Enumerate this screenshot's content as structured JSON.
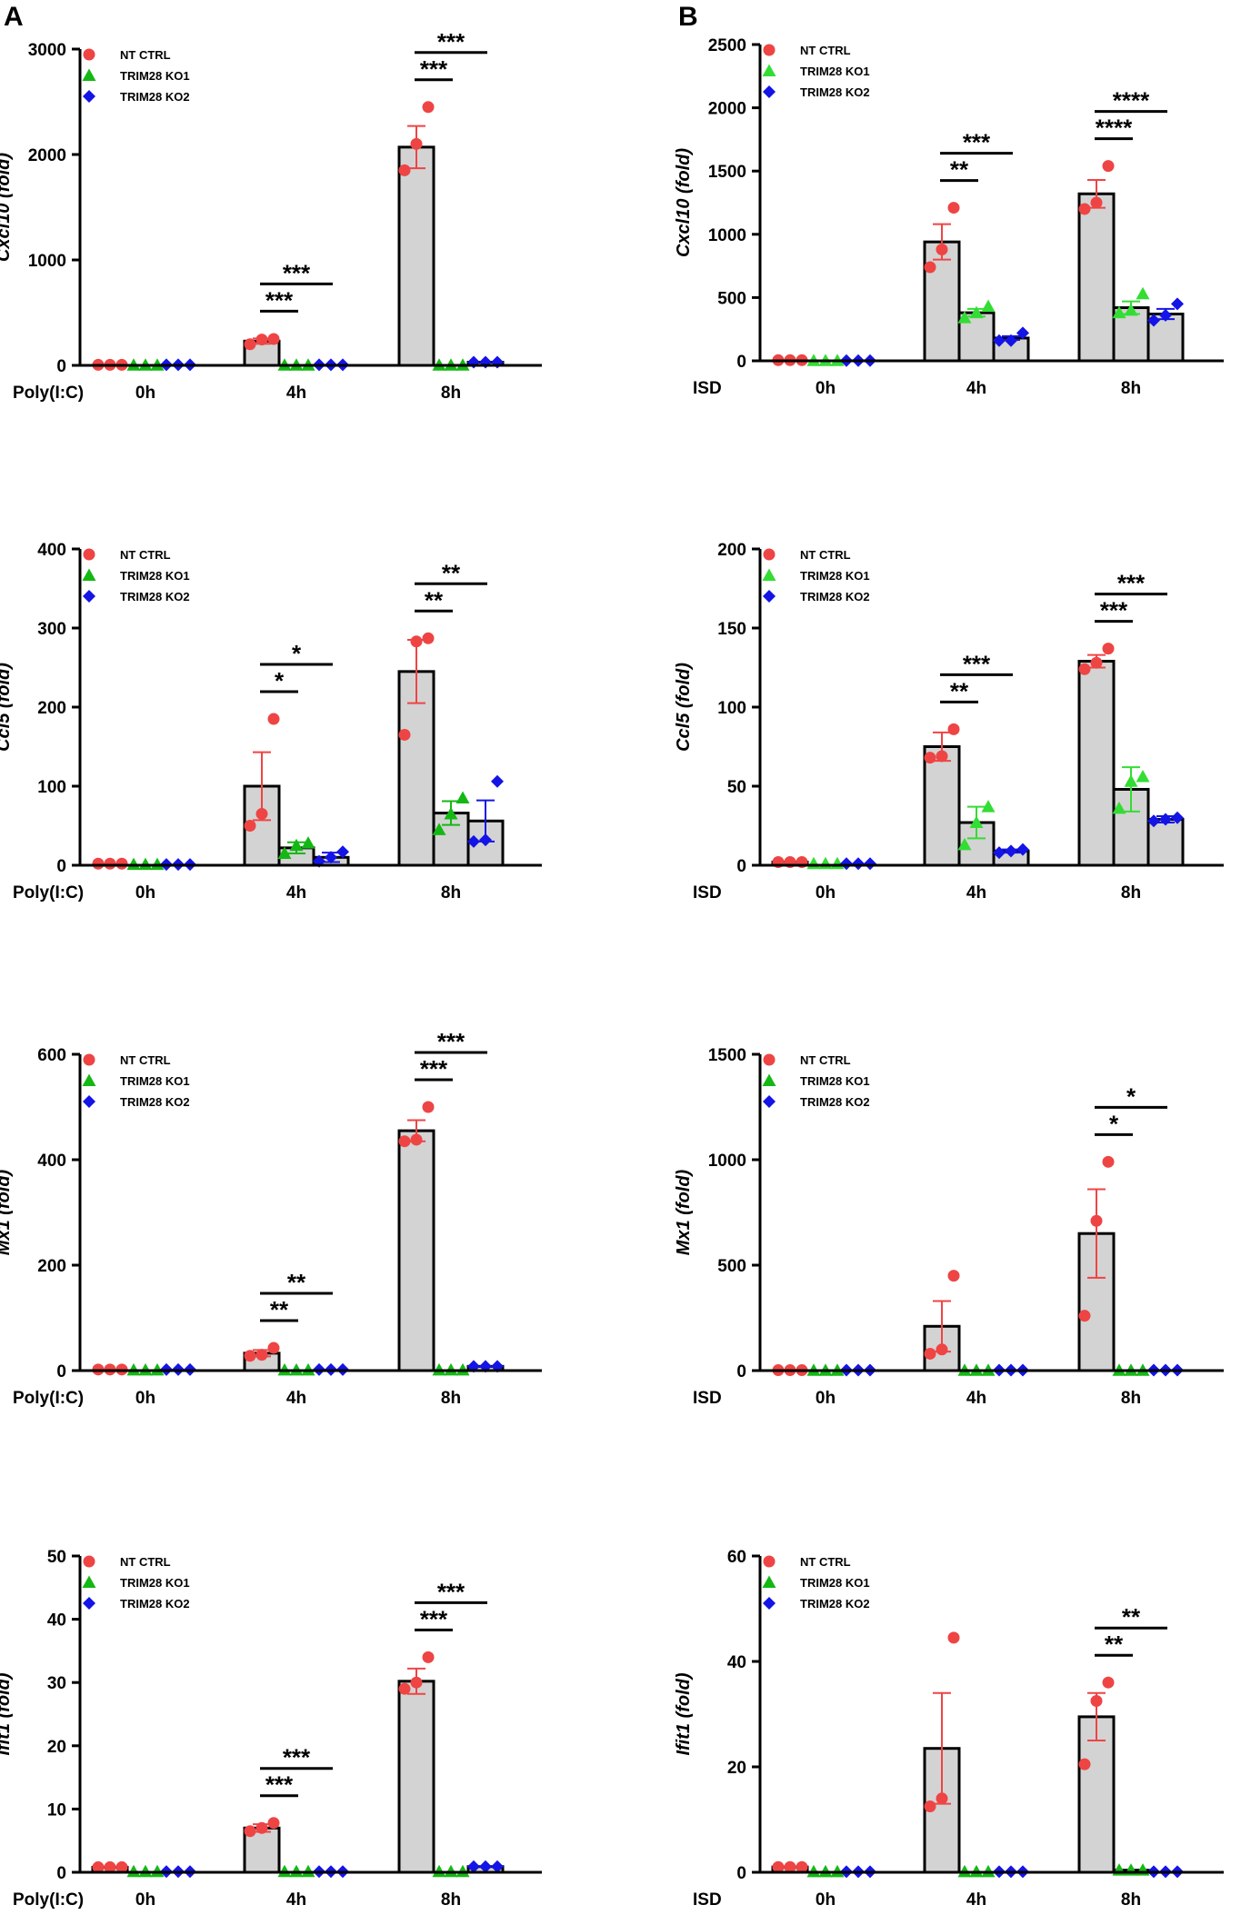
{
  "figure": {
    "panel_labels": [
      "A",
      "B"
    ],
    "colors": {
      "nt_ctrl": "#ef4444",
      "ko1_a": "#14b814",
      "ko1_b": "#33dd33",
      "ko2": "#1414e6",
      "bar_fill": "#d3d3d3",
      "bar_stroke": "#000000"
    }
  },
  "chart_data": [
    {
      "id": "A1",
      "type": "bar",
      "ylabel": "Cxcl10 (fold)",
      "ylim": [
        0,
        3000
      ],
      "yticks": [
        "0",
        "1000",
        "2000",
        "3000"
      ],
      "treatment": "Poly(I:C)",
      "categories": [
        "0h",
        "4h",
        "8h"
      ],
      "legend": [
        "NT CTRL",
        "TRIM28 KO1",
        "TRIM28 KO2"
      ],
      "ko1_color": "ko1_a",
      "series": [
        {
          "name": "NT CTRL",
          "means": [
            5,
            230,
            2070
          ],
          "err": [
            0,
            25,
            200
          ],
          "points": [
            [
              5,
              5,
              5
            ],
            [
              200,
              245,
              250
            ],
            [
              1850,
              2100,
              2450
            ]
          ]
        },
        {
          "name": "TRIM28 KO1",
          "means": [
            2,
            2,
            2
          ],
          "err": [
            0,
            0,
            0
          ],
          "points": [
            [
              2,
              2,
              2
            ],
            [
              2,
              2,
              2
            ],
            [
              2,
              2,
              2
            ]
          ]
        },
        {
          "name": "TRIM28 KO2",
          "means": [
            5,
            5,
            30
          ],
          "err": [
            0,
            0,
            0
          ],
          "points": [
            [
              5,
              5,
              5
            ],
            [
              5,
              5,
              5
            ],
            [
              30,
              30,
              30
            ]
          ]
        }
      ],
      "significance": [
        {
          "group": 1,
          "to": 1,
          "level": 0,
          "label": "***"
        },
        {
          "group": 1,
          "to": 2,
          "level": 1,
          "label": "***"
        },
        {
          "group": 2,
          "to": 1,
          "level": 0,
          "label": "***"
        },
        {
          "group": 2,
          "to": 2,
          "level": 1,
          "label": "***"
        }
      ]
    },
    {
      "id": "B1",
      "type": "bar",
      "ylabel": "Cxcl10 (fold)",
      "ylim": [
        0,
        2500
      ],
      "yticks": [
        "0",
        "500",
        "1000",
        "1500",
        "2000",
        "2500"
      ],
      "treatment": "ISD",
      "categories": [
        "0h",
        "4h",
        "8h"
      ],
      "legend": [
        "NT CTRL",
        "TRIM28 KO1",
        "TRIM28 KO2"
      ],
      "ko1_color": "ko1_b",
      "series": [
        {
          "name": "NT CTRL",
          "means": [
            5,
            940,
            1320
          ],
          "err": [
            0,
            140,
            110
          ],
          "points": [
            [
              5,
              5,
              5
            ],
            [
              740,
              880,
              1210
            ],
            [
              1200,
              1250,
              1540
            ]
          ]
        },
        {
          "name": "TRIM28 KO1",
          "means": [
            2,
            380,
            420
          ],
          "err": [
            0,
            30,
            50
          ],
          "points": [
            [
              2,
              2,
              2
            ],
            [
              340,
              380,
              430
            ],
            [
              380,
              400,
              530
            ]
          ]
        },
        {
          "name": "TRIM28 KO2",
          "means": [
            2,
            180,
            370
          ],
          "err": [
            0,
            15,
            40
          ],
          "points": [
            [
              2,
              2,
              2
            ],
            [
              160,
              160,
              220
            ],
            [
              320,
              360,
              450
            ]
          ]
        }
      ],
      "significance": [
        {
          "group": 1,
          "to": 1,
          "level": 0,
          "label": "**"
        },
        {
          "group": 1,
          "to": 2,
          "level": 1,
          "label": "***"
        },
        {
          "group": 2,
          "to": 1,
          "level": 0,
          "label": "****"
        },
        {
          "group": 2,
          "to": 2,
          "level": 1,
          "label": "****"
        }
      ]
    },
    {
      "id": "A2",
      "type": "bar",
      "ylabel": "Ccl5 (fold)",
      "ylim": [
        0,
        400
      ],
      "yticks": [
        "0",
        "100",
        "200",
        "300",
        "400"
      ],
      "treatment": "Poly(I:C)",
      "categories": [
        "0h",
        "4h",
        "8h"
      ],
      "legend": [
        "NT CTRL",
        "TRIM28 KO1",
        "TRIM28 KO2"
      ],
      "ko1_color": "ko1_a",
      "series": [
        {
          "name": "NT CTRL",
          "means": [
            2,
            100,
            245
          ],
          "err": [
            0,
            43,
            40
          ],
          "points": [
            [
              2,
              2,
              2
            ],
            [
              50,
              65,
              185
            ],
            [
              165,
              283,
              287
            ]
          ]
        },
        {
          "name": "TRIM28 KO1",
          "means": [
            1,
            22,
            66
          ],
          "err": [
            0,
            7,
            15
          ],
          "points": [
            [
              1,
              1,
              1
            ],
            [
              15,
              25,
              28
            ],
            [
              45,
              65,
              85
            ]
          ]
        },
        {
          "name": "TRIM28 KO2",
          "means": [
            1,
            10,
            56
          ],
          "err": [
            0,
            6,
            26
          ],
          "points": [
            [
              1,
              1,
              1
            ],
            [
              5,
              10,
              17
            ],
            [
              30,
              32,
              106
            ]
          ]
        }
      ],
      "significance": [
        {
          "group": 1,
          "to": 1,
          "level": 0,
          "label": "*"
        },
        {
          "group": 1,
          "to": 2,
          "level": 1,
          "label": "*"
        },
        {
          "group": 2,
          "to": 1,
          "level": 0,
          "label": "**"
        },
        {
          "group": 2,
          "to": 2,
          "level": 1,
          "label": "**"
        }
      ]
    },
    {
      "id": "B2",
      "type": "bar",
      "ylabel": "Ccl5 (fold)",
      "ylim": [
        0,
        200
      ],
      "yticks": [
        "0",
        "50",
        "100",
        "150",
        "200"
      ],
      "treatment": "ISD",
      "categories": [
        "0h",
        "4h",
        "8h"
      ],
      "legend": [
        "NT CTRL",
        "TRIM28 KO1",
        "TRIM28 KO2"
      ],
      "ko1_color": "ko1_b",
      "series": [
        {
          "name": "NT CTRL",
          "means": [
            2,
            75,
            129
          ],
          "err": [
            0,
            9,
            4
          ],
          "points": [
            [
              2,
              2,
              2
            ],
            [
              68,
              69,
              86
            ],
            [
              124,
              128,
              137
            ]
          ]
        },
        {
          "name": "TRIM28 KO1",
          "means": [
            1,
            27,
            48
          ],
          "err": [
            0,
            10,
            14
          ],
          "points": [
            [
              1,
              1,
              1
            ],
            [
              13,
              27,
              37
            ],
            [
              36,
              53,
              56
            ]
          ]
        },
        {
          "name": "TRIM28 KO2",
          "means": [
            1,
            9,
            29
          ],
          "err": [
            0,
            1,
            2
          ],
          "points": [
            [
              1,
              1,
              1
            ],
            [
              8,
              9,
              10
            ],
            [
              28,
              29,
              30
            ]
          ]
        }
      ],
      "significance": [
        {
          "group": 1,
          "to": 1,
          "level": 0,
          "label": "**"
        },
        {
          "group": 1,
          "to": 2,
          "level": 1,
          "label": "***"
        },
        {
          "group": 2,
          "to": 1,
          "level": 0,
          "label": "***"
        },
        {
          "group": 2,
          "to": 2,
          "level": 1,
          "label": "***"
        }
      ]
    },
    {
      "id": "A3",
      "type": "bar",
      "ylabel": "Mx1 (fold)",
      "ylim": [
        0,
        600
      ],
      "yticks": [
        "0",
        "200",
        "400",
        "600"
      ],
      "treatment": "Poly(I:C)",
      "categories": [
        "0h",
        "4h",
        "8h"
      ],
      "legend": [
        "NT CTRL",
        "TRIM28 KO1",
        "TRIM28 KO2"
      ],
      "ko1_color": "ko1_a",
      "series": [
        {
          "name": "NT CTRL",
          "means": [
            2,
            33,
            455
          ],
          "err": [
            0,
            6,
            20
          ],
          "points": [
            [
              2,
              2,
              2
            ],
            [
              28,
              30,
              43
            ],
            [
              435,
              438,
              500
            ]
          ]
        },
        {
          "name": "TRIM28 KO1",
          "means": [
            1,
            1,
            1
          ],
          "err": [
            0,
            0,
            0
          ],
          "points": [
            [
              1,
              1,
              1
            ],
            [
              1,
              1,
              1
            ],
            [
              1,
              1,
              1
            ]
          ]
        },
        {
          "name": "TRIM28 KO2",
          "means": [
            2,
            2,
            8
          ],
          "err": [
            0,
            0,
            0
          ],
          "points": [
            [
              2,
              2,
              2
            ],
            [
              2,
              2,
              2
            ],
            [
              8,
              8,
              8
            ]
          ]
        }
      ],
      "significance": [
        {
          "group": 1,
          "to": 1,
          "level": 0,
          "label": "**"
        },
        {
          "group": 1,
          "to": 2,
          "level": 1,
          "label": "**"
        },
        {
          "group": 2,
          "to": 1,
          "level": 0,
          "label": "***"
        },
        {
          "group": 2,
          "to": 2,
          "level": 1,
          "label": "***"
        }
      ]
    },
    {
      "id": "B3",
      "type": "bar",
      "ylabel": "Mx1 (fold)",
      "ylim": [
        0,
        1500
      ],
      "yticks": [
        "0",
        "500",
        "1000",
        "1500"
      ],
      "treatment": "ISD",
      "categories": [
        "0h",
        "4h",
        "8h"
      ],
      "legend": [
        "NT CTRL",
        "TRIM28 KO1",
        "TRIM28 KO2"
      ],
      "ko1_color": "ko1_a",
      "series": [
        {
          "name": "NT CTRL",
          "means": [
            2,
            210,
            650
          ],
          "err": [
            0,
            120,
            210
          ],
          "points": [
            [
              2,
              2,
              2
            ],
            [
              80,
              100,
              450
            ],
            [
              260,
              710,
              990
            ]
          ]
        },
        {
          "name": "TRIM28 KO1",
          "means": [
            1,
            1,
            1
          ],
          "err": [
            0,
            0,
            0
          ],
          "points": [
            [
              1,
              1,
              1
            ],
            [
              1,
              1,
              1
            ],
            [
              1,
              1,
              1
            ]
          ]
        },
        {
          "name": "TRIM28 KO2",
          "means": [
            2,
            2,
            2
          ],
          "err": [
            0,
            0,
            0
          ],
          "points": [
            [
              2,
              2,
              2
            ],
            [
              2,
              2,
              2
            ],
            [
              2,
              2,
              2
            ]
          ]
        }
      ],
      "significance": [
        {
          "group": 2,
          "to": 1,
          "level": 0,
          "label": "*"
        },
        {
          "group": 2,
          "to": 2,
          "level": 1,
          "label": "*"
        }
      ]
    },
    {
      "id": "A4",
      "type": "bar",
      "ylabel": "Ifit1 (fold)",
      "ylim": [
        0,
        50
      ],
      "yticks": [
        "0",
        "10",
        "20",
        "30",
        "40",
        "50"
      ],
      "treatment": "Poly(I:C)",
      "categories": [
        "0h",
        "4h",
        "8h"
      ],
      "legend": [
        "NT CTRL",
        "TRIM28 KO1",
        "TRIM28 KO2"
      ],
      "ko1_color": "ko1_a",
      "series": [
        {
          "name": "NT CTRL",
          "means": [
            0.8,
            7,
            30.2
          ],
          "err": [
            0,
            0.6,
            2
          ],
          "points": [
            [
              0.8,
              0.8,
              0.8
            ],
            [
              6.5,
              7,
              7.8
            ],
            [
              29,
              30,
              34
            ]
          ]
        },
        {
          "name": "TRIM28 KO1",
          "means": [
            0.1,
            0.1,
            0.1
          ],
          "err": [
            0,
            0,
            0
          ],
          "points": [
            [
              0.1,
              0.1,
              0.1
            ],
            [
              0.1,
              0.1,
              0.1
            ],
            [
              0.1,
              0.1,
              0.1
            ]
          ]
        },
        {
          "name": "TRIM28 KO2",
          "means": [
            0.1,
            0.1,
            0.9
          ],
          "err": [
            0,
            0,
            0
          ],
          "points": [
            [
              0.1,
              0.1,
              0.1
            ],
            [
              0.1,
              0.1,
              0.1
            ],
            [
              0.9,
              0.9,
              0.9
            ]
          ]
        }
      ],
      "significance": [
        {
          "group": 1,
          "to": 1,
          "level": 0,
          "label": "***"
        },
        {
          "group": 1,
          "to": 2,
          "level": 1,
          "label": "***"
        },
        {
          "group": 2,
          "to": 1,
          "level": 0,
          "label": "***"
        },
        {
          "group": 2,
          "to": 2,
          "level": 1,
          "label": "***"
        }
      ]
    },
    {
      "id": "B4",
      "type": "bar",
      "ylabel": "Ifit1 (fold)",
      "ylim": [
        0,
        60
      ],
      "yticks": [
        "0",
        "20",
        "40",
        "60"
      ],
      "treatment": "ISD",
      "categories": [
        "0h",
        "4h",
        "8h"
      ],
      "legend": [
        "NT CTRL",
        "TRIM28 KO1",
        "TRIM28 KO2"
      ],
      "ko1_color": "ko1_a",
      "series": [
        {
          "name": "NT CTRL",
          "means": [
            1,
            23.5,
            29.5
          ],
          "err": [
            0,
            10.5,
            4.5
          ],
          "points": [
            [
              1,
              1,
              1
            ],
            [
              12.5,
              14,
              44.5
            ],
            [
              20.5,
              32.5,
              36
            ]
          ]
        },
        {
          "name": "TRIM28 KO1",
          "means": [
            0.1,
            0.1,
            0.4
          ],
          "err": [
            0,
            0,
            0
          ],
          "points": [
            [
              0.1,
              0.1,
              0.1
            ],
            [
              0.1,
              0.1,
              0.1
            ],
            [
              0.4,
              0.4,
              0.4
            ]
          ]
        },
        {
          "name": "TRIM28 KO2",
          "means": [
            0.1,
            0.1,
            0.1
          ],
          "err": [
            0,
            0,
            0
          ],
          "points": [
            [
              0.1,
              0.1,
              0.1
            ],
            [
              0.1,
              0.1,
              0.1
            ],
            [
              0.1,
              0.1,
              0.1
            ]
          ]
        }
      ],
      "significance": [
        {
          "group": 2,
          "to": 1,
          "level": 0,
          "label": "**"
        },
        {
          "group": 2,
          "to": 2,
          "level": 1,
          "label": "**"
        }
      ]
    }
  ]
}
